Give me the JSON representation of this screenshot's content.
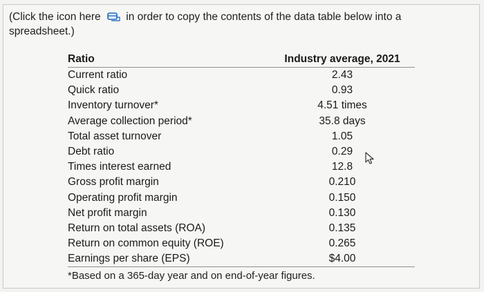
{
  "instruction": {
    "before_icon": "(Click the icon here",
    "after_icon": "in order to copy the contents of the data table below into a spreadsheet.)",
    "icon": "copy-table-icon"
  },
  "table": {
    "headers": [
      "Ratio",
      "Industry average, 2021"
    ],
    "rows": [
      {
        "ratio": "Current ratio",
        "value": "2.43"
      },
      {
        "ratio": "Quick ratio",
        "value": "0.93"
      },
      {
        "ratio": "Inventory turnover*",
        "value": "4.51 times"
      },
      {
        "ratio": "Average collection period*",
        "value": "35.8 days"
      },
      {
        "ratio": "Total asset turnover",
        "value": "1.05"
      },
      {
        "ratio": "Debt ratio",
        "value": "0.29"
      },
      {
        "ratio": "Times interest earned",
        "value": "12.8"
      },
      {
        "ratio": "Gross profit margin",
        "value": "0.210"
      },
      {
        "ratio": "Operating profit margin",
        "value": "0.150"
      },
      {
        "ratio": "Net profit margin",
        "value": "0.130"
      },
      {
        "ratio": "Return on total assets (ROA)",
        "value": "0.135"
      },
      {
        "ratio": "Return on common equity (ROE)",
        "value": "0.265"
      },
      {
        "ratio": "Earnings per share (EPS)",
        "value": "$4.00"
      }
    ]
  },
  "footnote": "*Based on a 365-day year and on end-of-year figures.",
  "colors": {
    "background": "#f3f3f1",
    "rule": "#8f8f8f",
    "text": "#1a1a1a"
  }
}
